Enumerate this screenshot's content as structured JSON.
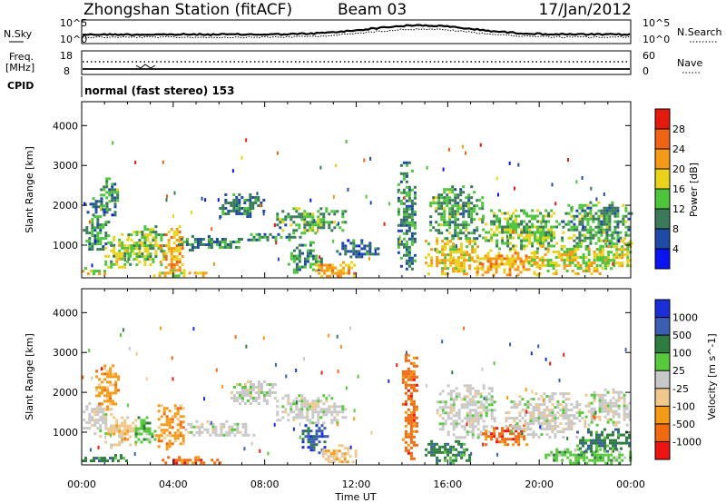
{
  "header": {
    "station": "Zhongshan Station (fitACF)",
    "beam": "Beam 03",
    "date": "17/Jan/2012"
  },
  "status_panels": {
    "nsky_label": "N.Sky",
    "nsearch_label": "N.Search",
    "noise_ticks": [
      "10^5",
      "10^0"
    ],
    "freq_label": "Freq.",
    "freq_unit": "[MHz]",
    "freq_ticks": [
      "18",
      "8"
    ],
    "nave_label": "Nave",
    "nave_ticks": [
      "60",
      "0"
    ],
    "cpid_label": "CPID",
    "cpid_text": "normal (fast stereo) 153"
  },
  "colors": {
    "power": [
      "#0a14f0",
      "#1e4ba6",
      "#3a7a5a",
      "#4ec43c",
      "#e8d21a",
      "#f59a16",
      "#ef6414",
      "#e41a0e"
    ],
    "velocity": [
      "#ee1412",
      "#f06a12",
      "#f59a16",
      "#f0c88c",
      "#c8c8c8",
      "#58c83c",
      "#2f7d3e",
      "#3b5fb0",
      "#1a2fd8"
    ]
  },
  "chart_data": [
    {
      "type": "heatmap",
      "title": "Power",
      "xlabel": "Time UT",
      "ylabel": "Slant Range [km]",
      "x_ticks": [
        "00:00",
        "04:00",
        "08:00",
        "12:00",
        "16:00",
        "20:00",
        "00:00"
      ],
      "xlim": [
        0,
        24
      ],
      "y_ticks": [
        1000,
        2000,
        3000,
        4000
      ],
      "ylim": [
        180,
        4600
      ],
      "colorbar": {
        "label": "Power [dB]",
        "ticks": [
          "4",
          "8",
          "12",
          "16",
          "20",
          "24",
          "28"
        ],
        "range": [
          0,
          32
        ]
      },
      "blobs": [
        {
          "t0": 0.05,
          "t1": 1.2,
          "r0": 900,
          "r1": 1750,
          "v": 9
        },
        {
          "t0": 0.1,
          "t1": 1.5,
          "r0": 1750,
          "r1": 2200,
          "v": 6
        },
        {
          "t0": 0.8,
          "t1": 1.6,
          "r0": 2000,
          "r1": 2700,
          "v": 10
        },
        {
          "t0": 1.0,
          "t1": 2.2,
          "r0": 400,
          "r1": 1300,
          "v": 14
        },
        {
          "t0": 2.0,
          "t1": 3.6,
          "r0": 500,
          "r1": 1500,
          "v": 13
        },
        {
          "t0": 3.4,
          "t1": 4.4,
          "r0": 400,
          "r1": 1500,
          "v": 19
        },
        {
          "t0": 0.0,
          "t1": 1.2,
          "r0": 250,
          "r1": 450,
          "v": 15
        },
        {
          "t0": 3.0,
          "t1": 5.5,
          "r0": 230,
          "r1": 400,
          "v": 17
        },
        {
          "t0": 4.2,
          "t1": 7.0,
          "r0": 900,
          "r1": 1250,
          "v": 8
        },
        {
          "t0": 6.0,
          "t1": 8.0,
          "r0": 1700,
          "r1": 2300,
          "v": 7
        },
        {
          "t0": 7.0,
          "t1": 9.5,
          "r0": 1150,
          "r1": 1300,
          "v": 8
        },
        {
          "t0": 8.5,
          "t1": 11.5,
          "r0": 1300,
          "r1": 1950,
          "v": 10
        },
        {
          "t0": 9.0,
          "t1": 10.5,
          "r0": 300,
          "r1": 1100,
          "v": 9
        },
        {
          "t0": 10.2,
          "t1": 12.2,
          "r0": 250,
          "r1": 600,
          "v": 19
        },
        {
          "t0": 11.0,
          "t1": 13.0,
          "r0": 700,
          "r1": 1150,
          "v": 6
        },
        {
          "t0": 13.8,
          "t1": 14.6,
          "r0": 300,
          "r1": 3100,
          "v": 8
        },
        {
          "t0": 15.0,
          "t1": 17.5,
          "r0": 250,
          "r1": 1200,
          "v": 17
        },
        {
          "t0": 15.2,
          "t1": 17.5,
          "r0": 1200,
          "r1": 2500,
          "v": 10
        },
        {
          "t0": 17.0,
          "t1": 20.0,
          "r0": 250,
          "r1": 900,
          "v": 19
        },
        {
          "t0": 17.5,
          "t1": 21.0,
          "r0": 900,
          "r1": 1900,
          "v": 12
        },
        {
          "t0": 19.5,
          "t1": 23.0,
          "r0": 300,
          "r1": 1000,
          "v": 16
        },
        {
          "t0": 21.0,
          "t1": 24.0,
          "r0": 1000,
          "r1": 2100,
          "v": 10
        },
        {
          "t0": 22.5,
          "t1": 24.0,
          "r0": 400,
          "r1": 1200,
          "v": 15
        }
      ]
    },
    {
      "type": "heatmap",
      "title": "Velocity",
      "xlabel": "Time UT",
      "ylabel": "Slant Range [km]",
      "x_ticks": [
        "00:00",
        "04:00",
        "08:00",
        "12:00",
        "16:00",
        "20:00",
        "00:00"
      ],
      "xlim": [
        0,
        24
      ],
      "y_ticks": [
        1000,
        2000,
        3000,
        4000
      ],
      "ylim": [
        180,
        4600
      ],
      "colorbar": {
        "label": "Velocity [m s^-1]",
        "ticks": [
          "1000",
          "500",
          "100",
          "25",
          "-25",
          "-100",
          "-500",
          "-1000"
        ]
      },
      "blobs": [
        {
          "t0": 0.05,
          "t1": 1.3,
          "r0": 900,
          "r1": 1750,
          "v": 4
        },
        {
          "t0": 0.6,
          "t1": 1.6,
          "r0": 1600,
          "r1": 2700,
          "v": 2
        },
        {
          "t0": 1.0,
          "t1": 2.4,
          "r0": 600,
          "r1": 1400,
          "v": 3
        },
        {
          "t0": 2.2,
          "t1": 3.2,
          "r0": 700,
          "r1": 1400,
          "v": 5
        },
        {
          "t0": 3.2,
          "t1": 4.5,
          "r0": 600,
          "r1": 1700,
          "v": 2
        },
        {
          "t0": 0.0,
          "t1": 2.0,
          "r0": 250,
          "r1": 450,
          "v": 6
        },
        {
          "t0": 3.5,
          "t1": 6.0,
          "r0": 230,
          "r1": 400,
          "v": 1
        },
        {
          "t0": 4.5,
          "t1": 7.5,
          "r0": 900,
          "r1": 1300,
          "v": 4
        },
        {
          "t0": 6.5,
          "t1": 8.5,
          "r0": 1700,
          "r1": 2300,
          "v": 4
        },
        {
          "t0": 8.5,
          "t1": 11.5,
          "r0": 1250,
          "r1": 1950,
          "v": 4
        },
        {
          "t0": 9.5,
          "t1": 10.8,
          "r0": 500,
          "r1": 1200,
          "v": 7
        },
        {
          "t0": 10.5,
          "t1": 12.0,
          "r0": 250,
          "r1": 700,
          "v": 3
        },
        {
          "t0": 14.0,
          "t1": 14.6,
          "r0": 300,
          "r1": 3100,
          "v": 1
        },
        {
          "t0": 15.0,
          "t1": 17.0,
          "r0": 250,
          "r1": 800,
          "v": 6
        },
        {
          "t0": 15.5,
          "t1": 18.0,
          "r0": 900,
          "r1": 2200,
          "v": 4
        },
        {
          "t0": 17.5,
          "t1": 19.5,
          "r0": 700,
          "r1": 1200,
          "v": 1
        },
        {
          "t0": 18.5,
          "t1": 22.0,
          "r0": 900,
          "r1": 2000,
          "v": 4
        },
        {
          "t0": 20.0,
          "t1": 24.0,
          "r0": 250,
          "r1": 600,
          "v": 5
        },
        {
          "t0": 22.0,
          "t1": 24.0,
          "r0": 1200,
          "r1": 2100,
          "v": 4
        },
        {
          "t0": 21.5,
          "t1": 24.0,
          "r0": 500,
          "r1": 1100,
          "v": 6
        }
      ]
    }
  ]
}
